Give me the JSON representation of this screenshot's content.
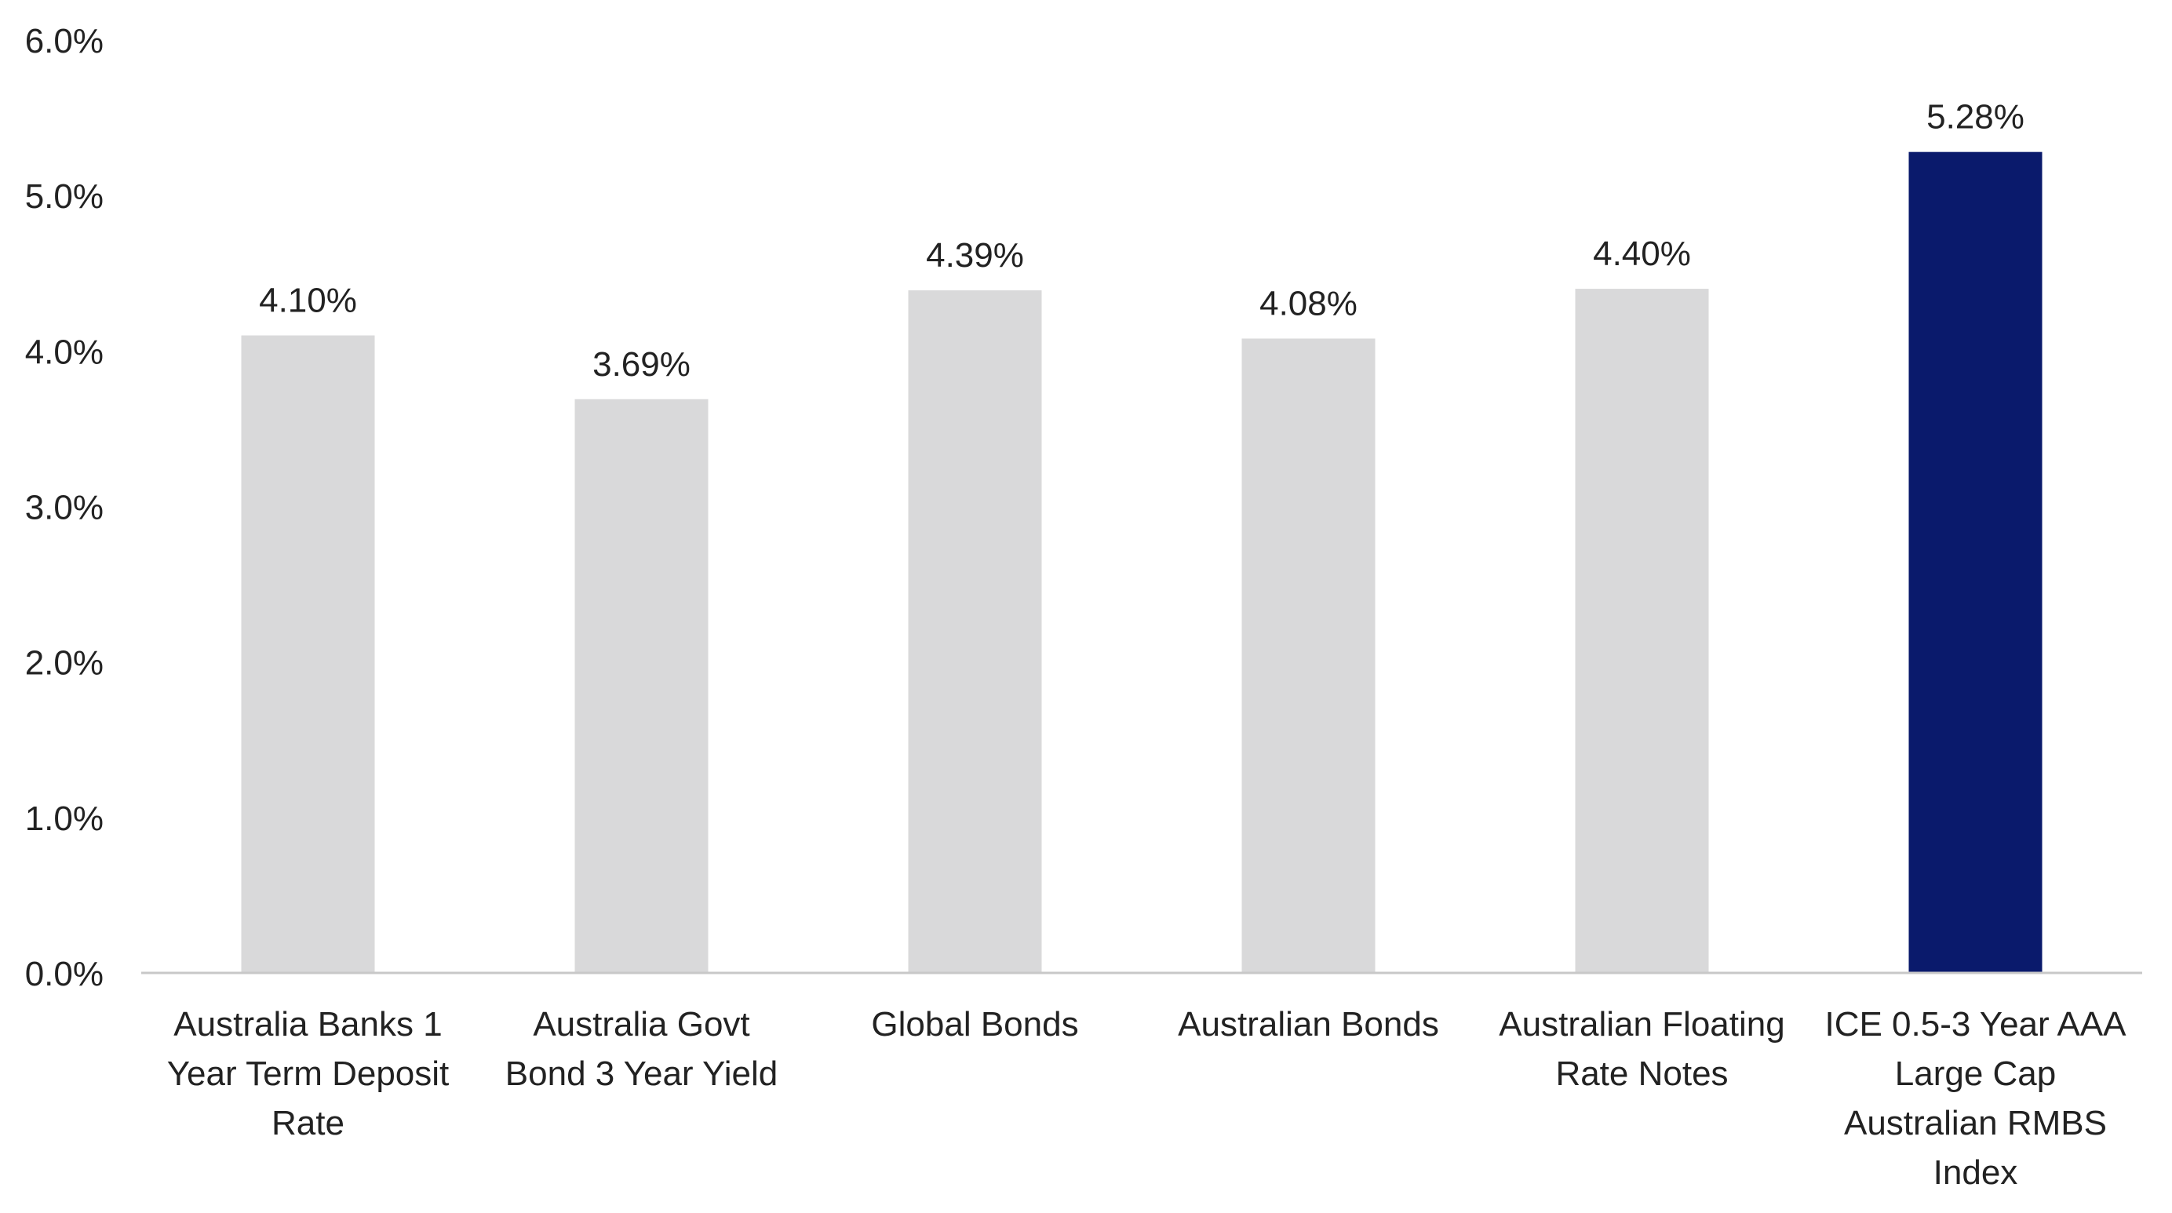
{
  "chart_data": {
    "type": "bar",
    "title": "",
    "xlabel": "",
    "ylabel": "",
    "ylim": [
      0,
      6
    ],
    "y_ticks": [
      0,
      1,
      2,
      3,
      4,
      5,
      6
    ],
    "y_tick_labels": [
      "0.0%",
      "1.0%",
      "2.0%",
      "3.0%",
      "4.0%",
      "5.0%",
      "6.0%"
    ],
    "grid": false,
    "legend": "none",
    "categories": [
      [
        "Australia Banks 1",
        "Year Term Deposit",
        "Rate"
      ],
      [
        "Australia Govt",
        "Bond 3 Year Yield"
      ],
      [
        "Global Bonds"
      ],
      [
        "Australian Bonds"
      ],
      [
        "Australian Floating",
        "Rate Notes"
      ],
      [
        "ICE 0.5-3 Year AAA",
        "Large Cap",
        "Australian RMBS",
        "Index"
      ]
    ],
    "values": [
      4.1,
      3.69,
      4.39,
      4.08,
      4.4,
      5.28
    ],
    "data_labels": [
      "4.10%",
      "3.69%",
      "4.39%",
      "4.08%",
      "4.40%",
      "5.28%"
    ],
    "colors": {
      "default_bar": "#d9d9da",
      "highlight_bar": "#0a1a6c",
      "axis_line": "#c8c8c8",
      "text": "#222222"
    },
    "highlight_index": 5
  }
}
